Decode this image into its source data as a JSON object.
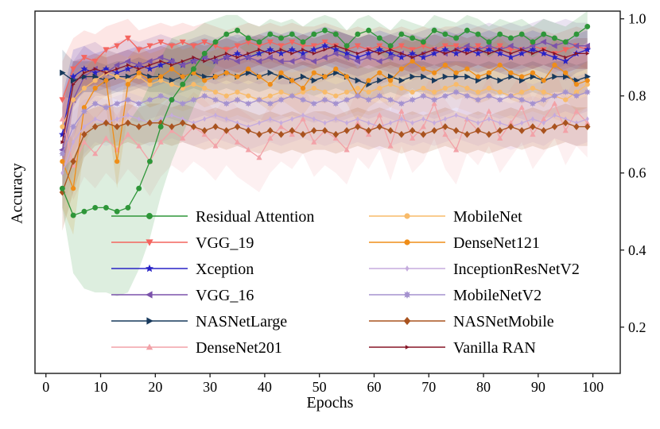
{
  "chart_data": {
    "type": "line",
    "title": "",
    "xlabel": "Epochs",
    "ylabel": "Accuracy",
    "xlim": [
      -2,
      105
    ],
    "ylim": [
      0.08,
      1.02
    ],
    "x_ticks": [
      0,
      10,
      20,
      30,
      40,
      50,
      60,
      70,
      80,
      90,
      100
    ],
    "y_ticks": [
      0.2,
      0.4,
      0.6,
      0.8,
      1.0
    ],
    "y_tick_labels": [
      "0.2",
      "0.4",
      "0.6",
      "0.8",
      "1.0"
    ],
    "grid": false,
    "axis_color": "#1a1a1a",
    "band_opacity": 0.16,
    "legend_position": "lower-center-inside, two columns, no frame",
    "legend": {
      "col1": [
        "Residual Attention",
        "VGG_19",
        "Xception",
        "VGG_16",
        "NASNetLarge",
        "DenseNet201"
      ],
      "col2": [
        "MobileNet",
        "DenseNet121",
        "InceptionResNetV2",
        "MobileNetV2",
        "NASNetMobile",
        "Vanilla RAN"
      ]
    },
    "x": [
      3,
      5,
      7,
      9,
      11,
      13,
      15,
      17,
      19,
      21,
      23,
      25,
      27,
      29,
      31,
      33,
      35,
      37,
      39,
      41,
      43,
      45,
      47,
      49,
      51,
      53,
      55,
      57,
      59,
      61,
      63,
      65,
      67,
      69,
      71,
      73,
      75,
      77,
      79,
      81,
      83,
      85,
      87,
      89,
      91,
      93,
      95,
      97,
      99
    ],
    "series": [
      {
        "name": "VGG_19",
        "color": "#f4655f",
        "marker": "triangle-down",
        "marker_size": 4.2,
        "values": [
          0.79,
          0.87,
          0.9,
          0.89,
          0.92,
          0.93,
          0.95,
          0.92,
          0.93,
          0.94,
          0.93,
          0.94,
          0.93,
          0.94,
          0.93,
          0.92,
          0.93,
          0.94,
          0.93,
          0.94,
          0.93,
          0.94,
          0.93,
          0.93,
          0.94,
          0.93,
          0.92,
          0.93,
          0.92,
          0.93,
          0.92,
          0.93,
          0.92,
          0.93,
          0.92,
          0.93,
          0.93,
          0.92,
          0.93,
          0.92,
          0.93,
          0.92,
          0.92,
          0.93,
          0.92,
          0.91,
          0.92,
          0.93,
          0.92
        ],
        "band_head": [
          0.1,
          0.08,
          0.07,
          0.07,
          0.06,
          0.06
        ],
        "band_tail": 0.05
      },
      {
        "name": "Xception",
        "color": "#2822c6",
        "marker": "star",
        "marker_size": 4.0,
        "values": [
          0.7,
          0.85,
          0.87,
          0.86,
          0.87,
          0.86,
          0.87,
          0.88,
          0.87,
          0.88,
          0.89,
          0.88,
          0.89,
          0.9,
          0.89,
          0.9,
          0.91,
          0.9,
          0.91,
          0.92,
          0.91,
          0.92,
          0.91,
          0.92,
          0.93,
          0.92,
          0.91,
          0.9,
          0.91,
          0.92,
          0.91,
          0.9,
          0.91,
          0.9,
          0.91,
          0.92,
          0.91,
          0.92,
          0.91,
          0.92,
          0.91,
          0.9,
          0.91,
          0.92,
          0.91,
          0.9,
          0.89,
          0.91,
          0.92
        ],
        "band_head": [
          0.1,
          0.07,
          0.06
        ],
        "band_tail": 0.05
      },
      {
        "name": "VGG_16",
        "color": "#7b52ab",
        "marker": "triangle-left",
        "marker_size": 4.2,
        "values": [
          0.66,
          0.79,
          0.85,
          0.87,
          0.86,
          0.88,
          0.89,
          0.88,
          0.89,
          0.9,
          0.89,
          0.88,
          0.89,
          0.9,
          0.89,
          0.9,
          0.89,
          0.9,
          0.89,
          0.9,
          0.89,
          0.89,
          0.9,
          0.89,
          0.9,
          0.91,
          0.9,
          0.89,
          0.9,
          0.89,
          0.9,
          0.91,
          0.9,
          0.91,
          0.92,
          0.91,
          0.92,
          0.93,
          0.92,
          0.93,
          0.92,
          0.93,
          0.92,
          0.93,
          0.94,
          0.93,
          0.94,
          0.93,
          0.93
        ],
        "band_head": [
          0.13,
          0.1,
          0.08,
          0.07
        ],
        "band_tail": 0.06
      },
      {
        "name": "NASNetLarge",
        "color": "#17395c",
        "marker": "triangle-right",
        "marker_size": 4.2,
        "values": [
          0.86,
          0.84,
          0.85,
          0.85,
          0.84,
          0.85,
          0.85,
          0.86,
          0.85,
          0.85,
          0.84,
          0.85,
          0.86,
          0.85,
          0.85,
          0.86,
          0.85,
          0.86,
          0.85,
          0.86,
          0.85,
          0.84,
          0.85,
          0.84,
          0.85,
          0.86,
          0.85,
          0.84,
          0.83,
          0.84,
          0.85,
          0.84,
          0.85,
          0.85,
          0.84,
          0.85,
          0.85,
          0.85,
          0.84,
          0.85,
          0.84,
          0.85,
          0.84,
          0.85,
          0.84,
          0.85,
          0.85,
          0.84,
          0.85
        ],
        "band_head": [
          0.06,
          0.05
        ],
        "band_tail": 0.04
      },
      {
        "name": "DenseNet201",
        "color": "#f2a2a8",
        "marker": "triangle-up",
        "marker_size": 3.8,
        "values": [
          0.74,
          0.62,
          0.68,
          0.65,
          0.69,
          0.66,
          0.7,
          0.67,
          0.63,
          0.68,
          0.71,
          0.69,
          0.72,
          0.7,
          0.67,
          0.71,
          0.68,
          0.66,
          0.64,
          0.69,
          0.72,
          0.7,
          0.74,
          0.68,
          0.71,
          0.69,
          0.66,
          0.73,
          0.7,
          0.75,
          0.67,
          0.76,
          0.69,
          0.72,
          0.78,
          0.7,
          0.66,
          0.74,
          0.71,
          0.76,
          0.69,
          0.73,
          0.77,
          0.7,
          0.74,
          0.78,
          0.71,
          0.76,
          0.73
        ],
        "band_head": [
          0.1
        ],
        "band_tail": 0.09
      },
      {
        "name": "MobileNet",
        "color": "#f8bb6a",
        "marker": "circle",
        "marker_size": 3.8,
        "values": [
          0.72,
          0.79,
          0.82,
          0.84,
          0.86,
          0.85,
          0.84,
          0.85,
          0.83,
          0.84,
          0.83,
          0.82,
          0.83,
          0.82,
          0.81,
          0.8,
          0.81,
          0.8,
          0.79,
          0.8,
          0.81,
          0.8,
          0.81,
          0.82,
          0.81,
          0.8,
          0.81,
          0.82,
          0.81,
          0.82,
          0.83,
          0.82,
          0.81,
          0.82,
          0.81,
          0.82,
          0.83,
          0.82,
          0.81,
          0.82,
          0.81,
          0.8,
          0.81,
          0.82,
          0.81,
          0.8,
          0.79,
          0.81,
          0.83
        ],
        "band_head": [
          0.08,
          0.07
        ],
        "band_tail": 0.06
      },
      {
        "name": "DenseNet121",
        "color": "#ef8d18",
        "marker": "circle",
        "marker_size": 3.8,
        "values": [
          0.63,
          0.56,
          0.77,
          0.82,
          0.84,
          0.63,
          0.83,
          0.86,
          0.84,
          0.85,
          0.87,
          0.85,
          0.86,
          0.84,
          0.85,
          0.86,
          0.85,
          0.87,
          0.85,
          0.83,
          0.86,
          0.84,
          0.82,
          0.86,
          0.85,
          0.87,
          0.85,
          0.8,
          0.84,
          0.86,
          0.84,
          0.87,
          0.89,
          0.87,
          0.86,
          0.88,
          0.86,
          0.87,
          0.85,
          0.86,
          0.88,
          0.86,
          0.85,
          0.86,
          0.84,
          0.88,
          0.86,
          0.83,
          0.84
        ],
        "band_head": [
          0.12,
          0.12,
          0.1,
          0.08
        ],
        "band_tail": 0.07
      },
      {
        "name": "InceptionResNetV2",
        "color": "#c5abdd",
        "marker": "diamond-thin",
        "marker_size": 3.4,
        "values": [
          0.6,
          0.68,
          0.72,
          0.74,
          0.73,
          0.74,
          0.75,
          0.74,
          0.73,
          0.74,
          0.75,
          0.74,
          0.73,
          0.74,
          0.75,
          0.74,
          0.73,
          0.72,
          0.73,
          0.74,
          0.73,
          0.74,
          0.75,
          0.74,
          0.73,
          0.74,
          0.73,
          0.74,
          0.73,
          0.72,
          0.73,
          0.74,
          0.73,
          0.74,
          0.73,
          0.74,
          0.75,
          0.74,
          0.73,
          0.74,
          0.73,
          0.72,
          0.73,
          0.74,
          0.73,
          0.75,
          0.74,
          0.73,
          0.74
        ],
        "band_head": [
          0.1,
          0.08,
          0.07
        ],
        "band_tail": 0.06
      },
      {
        "name": "MobileNetV2",
        "color": "#a592cf",
        "marker": "burst",
        "marker_size": 3.8,
        "values": [
          0.65,
          0.72,
          0.76,
          0.78,
          0.77,
          0.78,
          0.79,
          0.78,
          0.79,
          0.8,
          0.79,
          0.78,
          0.79,
          0.8,
          0.79,
          0.78,
          0.79,
          0.78,
          0.79,
          0.78,
          0.79,
          0.8,
          0.79,
          0.78,
          0.79,
          0.78,
          0.79,
          0.8,
          0.79,
          0.8,
          0.79,
          0.78,
          0.79,
          0.8,
          0.79,
          0.8,
          0.81,
          0.8,
          0.79,
          0.8,
          0.79,
          0.8,
          0.79,
          0.78,
          0.79,
          0.8,
          0.81,
          0.8,
          0.81
        ],
        "band_head": [
          0.09,
          0.07,
          0.06
        ],
        "band_tail": 0.05
      },
      {
        "name": "NASNetMobile",
        "color": "#a9531f",
        "marker": "diamond",
        "marker_size": 4.4,
        "values": [
          0.55,
          0.63,
          0.7,
          0.72,
          0.73,
          0.72,
          0.73,
          0.72,
          0.73,
          0.73,
          0.72,
          0.73,
          0.72,
          0.71,
          0.72,
          0.71,
          0.72,
          0.71,
          0.7,
          0.71,
          0.7,
          0.71,
          0.7,
          0.71,
          0.71,
          0.7,
          0.71,
          0.72,
          0.71,
          0.72,
          0.71,
          0.7,
          0.71,
          0.7,
          0.71,
          0.72,
          0.71,
          0.7,
          0.71,
          0.7,
          0.71,
          0.72,
          0.71,
          0.72,
          0.71,
          0.72,
          0.73,
          0.72,
          0.72
        ],
        "band_head": [
          0.1,
          0.08,
          0.06
        ],
        "band_tail": 0.05
      },
      {
        "name": "Vanilla RAN",
        "color": "#871527",
        "marker": "triangle-right",
        "marker_size": 2.6,
        "values": [
          0.68,
          0.83,
          0.86,
          0.87,
          0.86,
          0.87,
          0.88,
          0.87,
          0.88,
          0.89,
          0.88,
          0.89,
          0.9,
          0.89,
          0.9,
          0.91,
          0.9,
          0.91,
          0.92,
          0.91,
          0.92,
          0.91,
          0.92,
          0.91,
          0.92,
          0.93,
          0.92,
          0.91,
          0.92,
          0.91,
          0.92,
          0.91,
          0.9,
          0.91,
          0.92,
          0.91,
          0.92,
          0.91,
          0.92,
          0.91,
          0.92,
          0.91,
          0.92,
          0.91,
          0.92,
          0.91,
          0.9,
          0.91,
          0.91
        ],
        "band_head": [
          0.09,
          0.06
        ],
        "band_tail": 0.04
      },
      {
        "name": "Residual Attention",
        "color": "#2e9639",
        "marker": "circle",
        "marker_size": 4.2,
        "values": [
          0.56,
          0.49,
          0.5,
          0.51,
          0.51,
          0.5,
          0.51,
          0.56,
          0.63,
          0.72,
          0.79,
          0.83,
          0.87,
          0.91,
          0.94,
          0.96,
          0.97,
          0.95,
          0.94,
          0.96,
          0.95,
          0.96,
          0.94,
          0.96,
          0.97,
          0.96,
          0.93,
          0.96,
          0.97,
          0.95,
          0.93,
          0.96,
          0.95,
          0.94,
          0.97,
          0.96,
          0.95,
          0.97,
          0.96,
          0.94,
          0.96,
          0.95,
          0.96,
          0.94,
          0.96,
          0.95,
          0.94,
          0.96,
          0.98
        ],
        "band_head": [
          0.05,
          0.15,
          0.2,
          0.22,
          0.22,
          0.22,
          0.22,
          0.21,
          0.2,
          0.18,
          0.16,
          0.13,
          0.1,
          0.08,
          0.06,
          0.05
        ],
        "band_tail": 0.04
      }
    ]
  }
}
